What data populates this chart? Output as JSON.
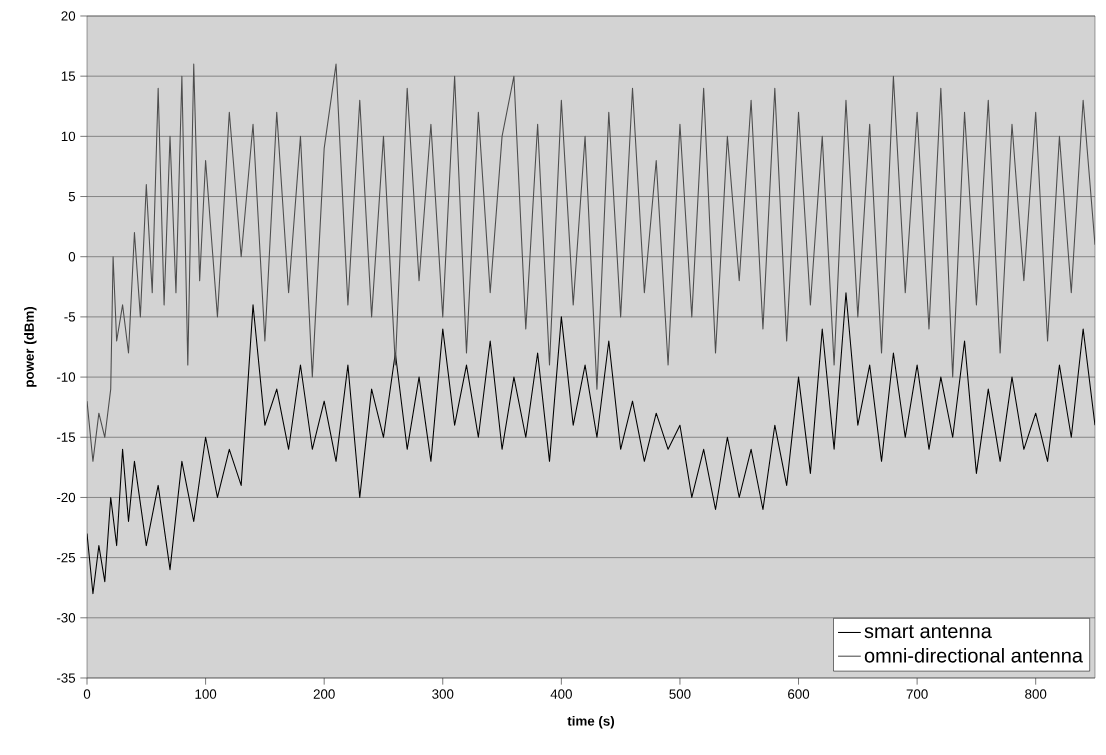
{
  "chart_data": {
    "type": "line",
    "xlabel": "time (s)",
    "ylabel": "power (dBm)",
    "xlim": [
      0,
      850
    ],
    "xticks": [
      0,
      100,
      200,
      300,
      400,
      500,
      600,
      700,
      800
    ],
    "ylim": [
      -35,
      20
    ],
    "yticks": [
      -35,
      -30,
      -25,
      -20,
      -15,
      -10,
      -5,
      0,
      5,
      10,
      15,
      20
    ],
    "grid": "y",
    "legend": "bottom right",
    "series": [
      {
        "name": "smart antenna",
        "color": "#000000",
        "x": [
          0,
          5,
          10,
          15,
          20,
          25,
          30,
          35,
          40,
          50,
          60,
          70,
          80,
          90,
          100,
          110,
          120,
          130,
          140,
          150,
          160,
          170,
          180,
          190,
          200,
          210,
          220,
          230,
          240,
          250,
          260,
          270,
          280,
          290,
          300,
          310,
          320,
          330,
          340,
          350,
          360,
          370,
          380,
          390,
          400,
          410,
          420,
          430,
          440,
          450,
          460,
          470,
          480,
          490,
          500,
          510,
          520,
          530,
          540,
          550,
          560,
          570,
          580,
          590,
          600,
          610,
          620,
          630,
          640,
          650,
          660,
          670,
          680,
          690,
          700,
          710,
          720,
          730,
          740,
          750,
          760,
          770,
          780,
          790,
          800,
          810,
          820,
          830,
          840,
          850
        ],
        "values": [
          -23,
          -28,
          -24,
          -27,
          -20,
          -24,
          -16,
          -22,
          -17,
          -24,
          -19,
          -26,
          -17,
          -22,
          -15,
          -20,
          -16,
          -19,
          -4,
          -14,
          -11,
          -16,
          -9,
          -16,
          -12,
          -17,
          -9,
          -20,
          -11,
          -15,
          -8,
          -16,
          -10,
          -17,
          -6,
          -14,
          -9,
          -15,
          -7,
          -16,
          -10,
          -15,
          -8,
          -17,
          -5,
          -14,
          -9,
          -15,
          -7,
          -16,
          -12,
          -17,
          -13,
          -16,
          -14,
          -20,
          -16,
          -21,
          -15,
          -20,
          -16,
          -21,
          -14,
          -19,
          -10,
          -18,
          -6,
          -16,
          -3,
          -14,
          -9,
          -17,
          -8,
          -15,
          -9,
          -16,
          -10,
          -15,
          -7,
          -18,
          -11,
          -17,
          -10,
          -16,
          -13,
          -17,
          -9,
          -15,
          -6,
          -14
        ]
      },
      {
        "name": "omni-directional antenna",
        "color": "#4d4d4d",
        "x": [
          0,
          5,
          10,
          15,
          20,
          22,
          25,
          30,
          35,
          40,
          45,
          50,
          55,
          60,
          65,
          70,
          75,
          80,
          85,
          90,
          95,
          100,
          110,
          120,
          130,
          140,
          150,
          160,
          170,
          180,
          190,
          200,
          210,
          220,
          230,
          240,
          250,
          260,
          270,
          280,
          290,
          300,
          310,
          320,
          330,
          340,
          350,
          360,
          370,
          380,
          390,
          400,
          410,
          420,
          430,
          440,
          450,
          460,
          470,
          480,
          490,
          500,
          510,
          520,
          530,
          540,
          550,
          560,
          570,
          580,
          590,
          600,
          610,
          620,
          630,
          640,
          650,
          660,
          670,
          680,
          690,
          700,
          710,
          720,
          730,
          740,
          750,
          760,
          770,
          780,
          790,
          800,
          810,
          820,
          830,
          840,
          850
        ],
        "values": [
          -12,
          -17,
          -13,
          -15,
          -11,
          0,
          -7,
          -4,
          -8,
          2,
          -5,
          6,
          -3,
          14,
          -4,
          10,
          -3,
          15,
          -9,
          16,
          -2,
          8,
          -5,
          12,
          0,
          11,
          -7,
          12,
          -3,
          10,
          -10,
          9,
          16,
          -4,
          13,
          -5,
          10,
          -9,
          14,
          -2,
          11,
          -5,
          15,
          -8,
          12,
          -3,
          10,
          15,
          -6,
          11,
          -9,
          13,
          -4,
          10,
          -11,
          12,
          -5,
          14,
          -3,
          8,
          -9,
          11,
          -5,
          14,
          -8,
          10,
          -2,
          13,
          -6,
          14,
          -7,
          12,
          -4,
          10,
          -9,
          13,
          -5,
          11,
          -8,
          15,
          -3,
          12,
          -6,
          14,
          -10,
          12,
          -4,
          13,
          -8,
          11,
          -2,
          12,
          -7,
          10,
          -3,
          13,
          1
        ]
      }
    ]
  }
}
